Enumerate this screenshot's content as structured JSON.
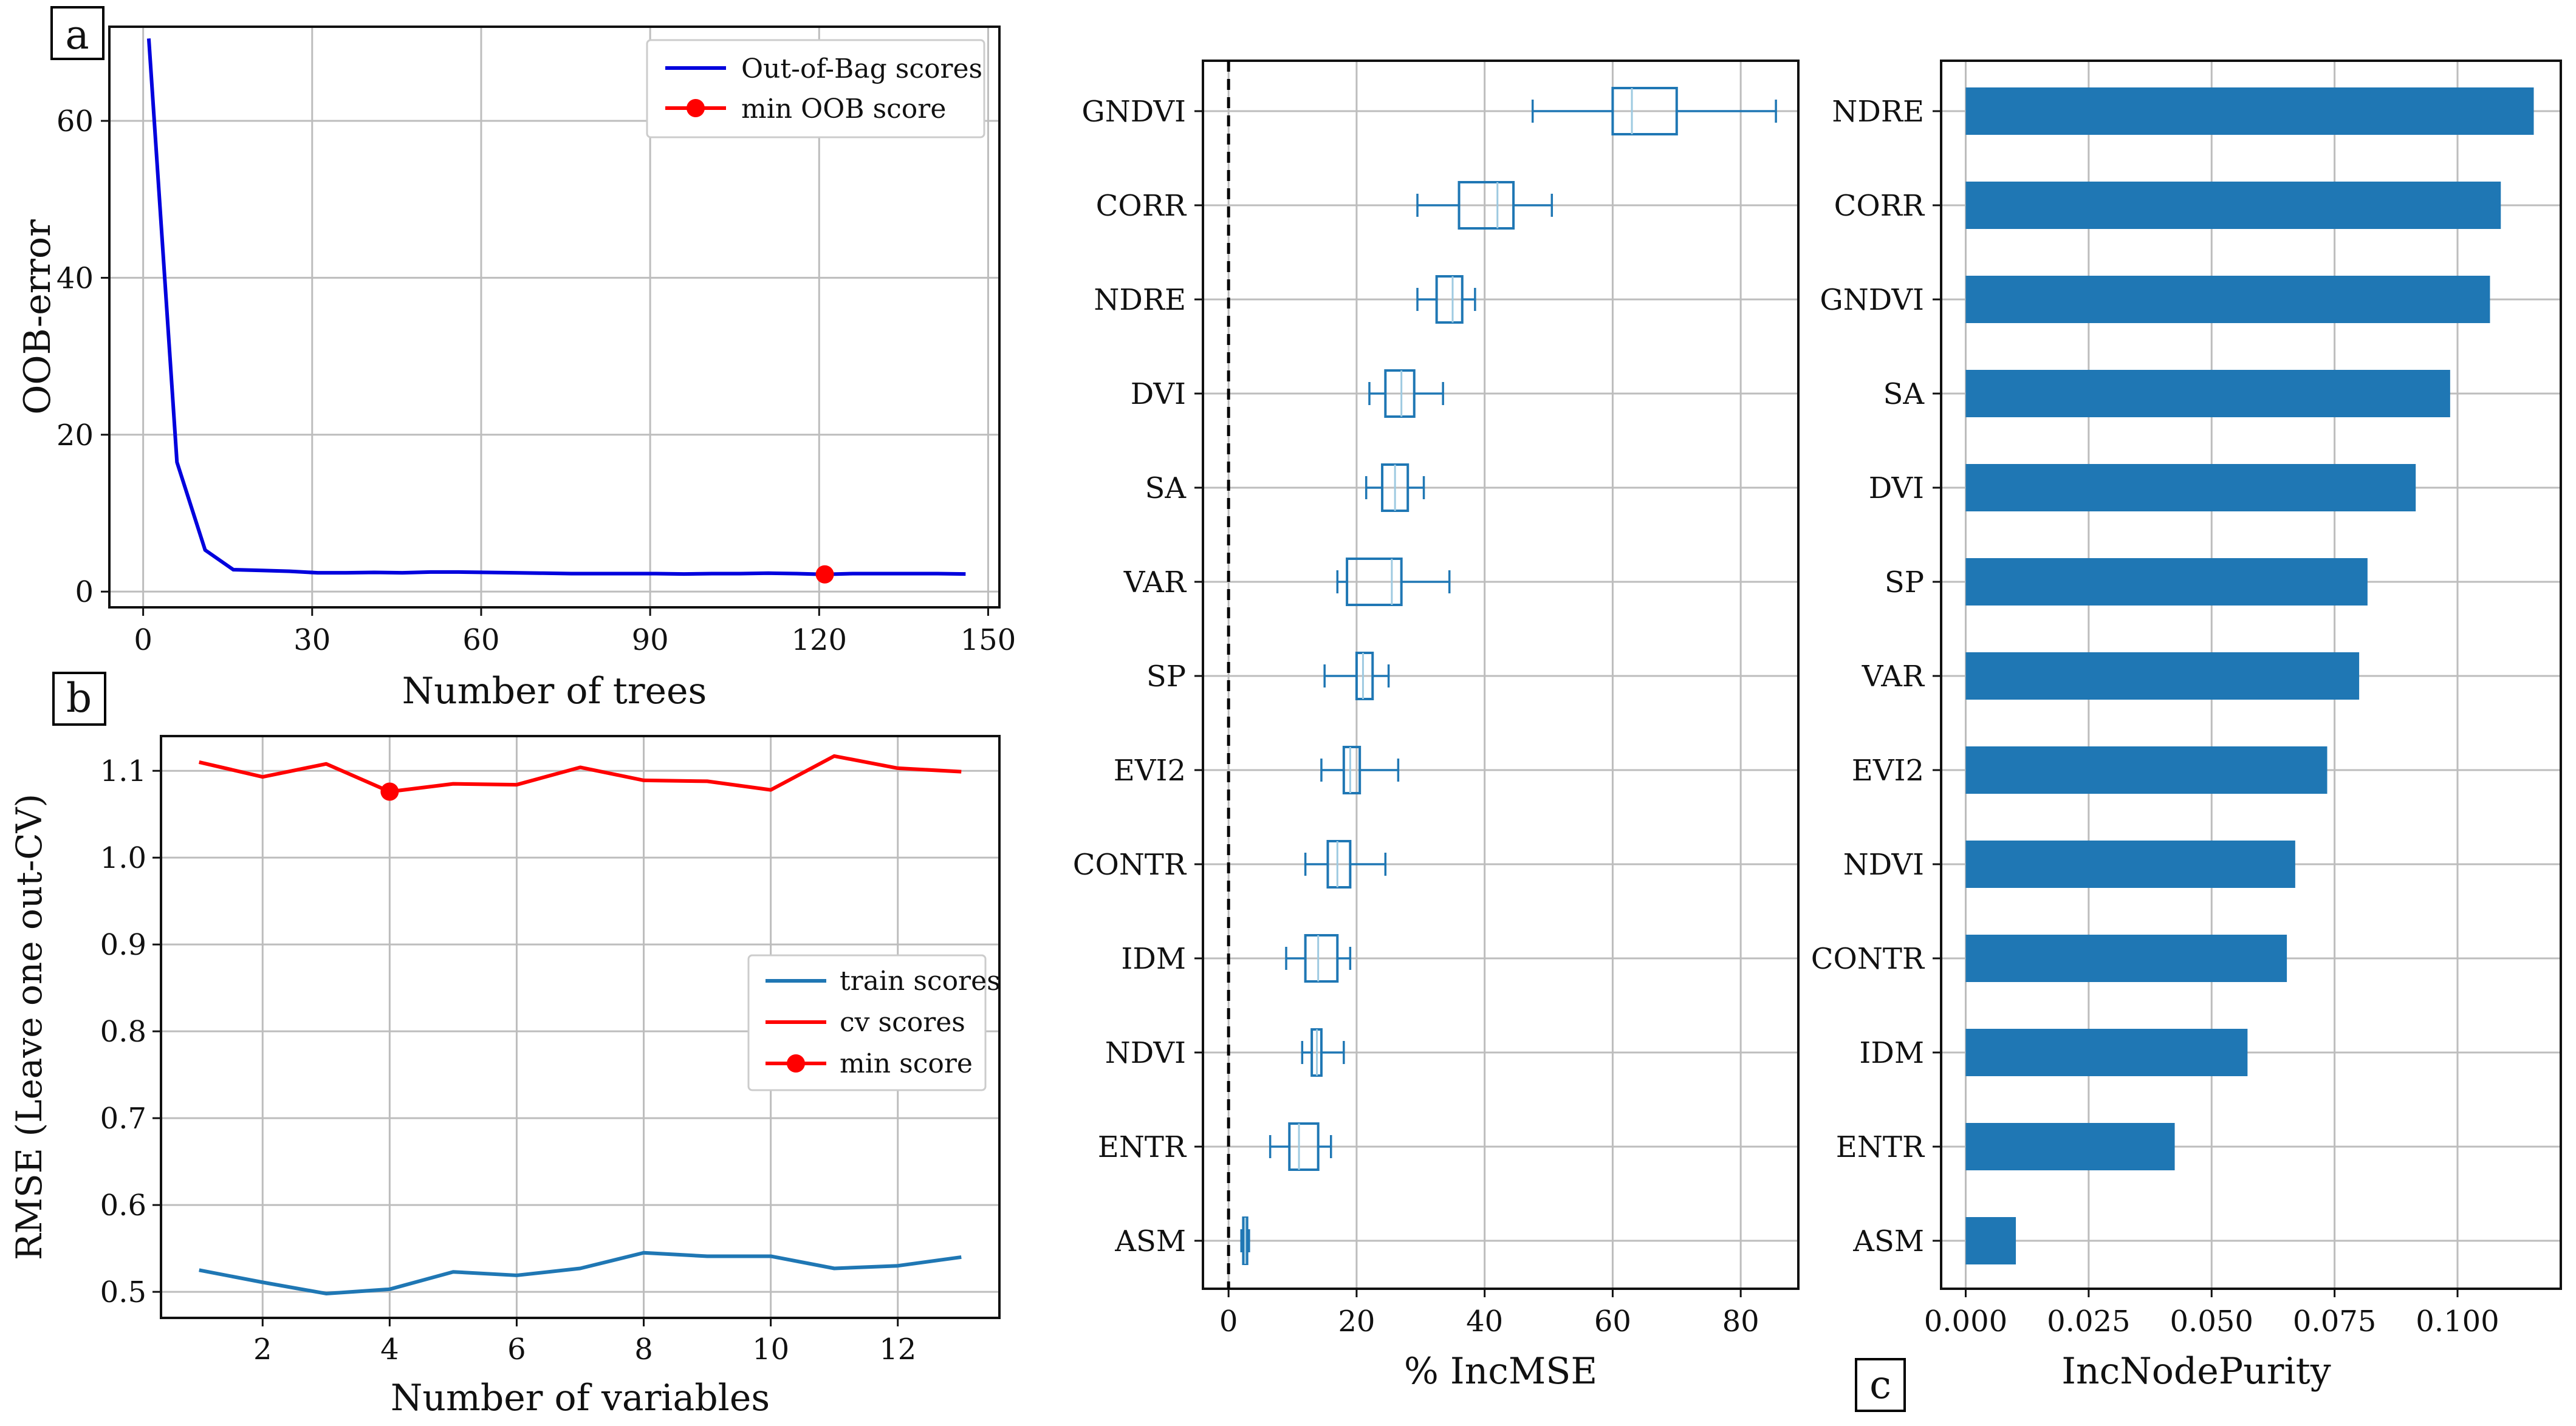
{
  "panels": {
    "a": {
      "tag": "a"
    },
    "b": {
      "tag": "b"
    },
    "c": {
      "tag": "c"
    }
  },
  "chart_data": [
    {
      "id": "a",
      "type": "line",
      "title": "",
      "xlabel": "Number of trees",
      "ylabel": "OOB-error",
      "xlim": [
        -6,
        152
      ],
      "ylim": [
        -2,
        72
      ],
      "xticks": [
        0,
        30,
        60,
        90,
        120,
        150
      ],
      "yticks": [
        0,
        20,
        40,
        60
      ],
      "grid": true,
      "legend_position": "top-right",
      "series": [
        {
          "name": "Out-of-Bag scores",
          "color": "#0000dd",
          "x": [
            1,
            6,
            11,
            16,
            21,
            26,
            31,
            36,
            41,
            46,
            51,
            56,
            61,
            66,
            71,
            76,
            81,
            86,
            91,
            96,
            101,
            106,
            111,
            116,
            121,
            126,
            131,
            136,
            141,
            146
          ],
          "y": [
            70.5,
            16.5,
            5.3,
            2.8,
            2.7,
            2.6,
            2.4,
            2.4,
            2.45,
            2.4,
            2.5,
            2.5,
            2.45,
            2.4,
            2.35,
            2.3,
            2.3,
            2.3,
            2.3,
            2.25,
            2.3,
            2.3,
            2.35,
            2.3,
            2.2,
            2.3,
            2.3,
            2.3,
            2.3,
            2.25
          ]
        }
      ],
      "markers": [
        {
          "name": "min OOB score",
          "color": "#ff0000",
          "x": 121,
          "y": 2.2
        }
      ]
    },
    {
      "id": "b",
      "type": "line",
      "title": "",
      "xlabel": "Number of variables",
      "ylabel": "RMSE (Leave one out-CV)",
      "xlim": [
        0.4,
        13.6
      ],
      "ylim": [
        0.47,
        1.14
      ],
      "xticks": [
        2,
        4,
        6,
        8,
        10,
        12
      ],
      "yticks": [
        0.5,
        0.6,
        0.7,
        0.8,
        0.9,
        1.0,
        1.1
      ],
      "ytick_labels": [
        "0.5",
        "0.6",
        "0.7",
        "0.8",
        "0.9",
        "1.0",
        "1.1"
      ],
      "grid": true,
      "legend_position": "center-right",
      "categories": [
        1,
        2,
        3,
        4,
        5,
        6,
        7,
        8,
        9,
        10,
        11,
        12,
        13
      ],
      "series": [
        {
          "name": "train scores",
          "color": "#1f77b4",
          "values": [
            0.525,
            0.511,
            0.498,
            0.503,
            0.523,
            0.519,
            0.527,
            0.545,
            0.541,
            0.541,
            0.527,
            0.53,
            0.54
          ]
        },
        {
          "name": "cv scores",
          "color": "#ff0000",
          "values": [
            1.11,
            1.093,
            1.108,
            1.076,
            1.085,
            1.084,
            1.104,
            1.089,
            1.088,
            1.078,
            1.117,
            1.103,
            1.099
          ]
        }
      ],
      "markers": [
        {
          "name": "min score",
          "color": "#ff0000",
          "x": 4,
          "y": 1.076
        }
      ]
    },
    {
      "id": "boxplot",
      "type": "box",
      "title": "",
      "xlabel": "% IncMSE",
      "ylabel": "",
      "xlim": [
        -4,
        89
      ],
      "xticks": [
        0,
        20,
        40,
        60,
        80
      ],
      "grid": true,
      "reference_line": 0,
      "color": "#1f77b4",
      "categories": [
        "GNDVI",
        "CORR",
        "NDRE",
        "DVI",
        "SA",
        "VAR",
        "SP",
        "EVI2",
        "CONTR",
        "IDM",
        "NDVI",
        "ENTR",
        "ASM"
      ],
      "boxes": [
        {
          "label": "GNDVI",
          "whislo": 47.5,
          "q1": 60,
          "median": 63,
          "q3": 70,
          "whishi": 85.5
        },
        {
          "label": "CORR",
          "whislo": 29.5,
          "q1": 36,
          "median": 42,
          "q3": 44.5,
          "whishi": 50.5
        },
        {
          "label": "NDRE",
          "whislo": 29.5,
          "q1": 32.5,
          "median": 35,
          "q3": 36.5,
          "whishi": 38.5
        },
        {
          "label": "DVI",
          "whislo": 22,
          "q1": 24.5,
          "median": 27,
          "q3": 29,
          "whishi": 33.5
        },
        {
          "label": "SA",
          "whislo": 21.5,
          "q1": 24,
          "median": 26,
          "q3": 28,
          "whishi": 30.5
        },
        {
          "label": "VAR",
          "whislo": 17,
          "q1": 18.5,
          "median": 25.5,
          "q3": 27,
          "whishi": 34.5
        },
        {
          "label": "SP",
          "whislo": 15,
          "q1": 20,
          "median": 21,
          "q3": 22.5,
          "whishi": 25
        },
        {
          "label": "EVI2",
          "whislo": 14.5,
          "q1": 18,
          "median": 19,
          "q3": 20.5,
          "whishi": 26.5
        },
        {
          "label": "CONTR",
          "whislo": 12,
          "q1": 15.5,
          "median": 17,
          "q3": 19,
          "whishi": 24.5
        },
        {
          "label": "IDM",
          "whislo": 9,
          "q1": 12,
          "median": 14,
          "q3": 17,
          "whishi": 19
        },
        {
          "label": "NDVI",
          "whislo": 11.5,
          "q1": 13,
          "median": 13.8,
          "q3": 14.5,
          "whishi": 18
        },
        {
          "label": "ENTR",
          "whislo": 6.5,
          "q1": 9.5,
          "median": 11,
          "q3": 14,
          "whishi": 16
        },
        {
          "label": "ASM",
          "whislo": 2,
          "q1": 2.3,
          "median": 2.6,
          "q3": 2.9,
          "whishi": 3.2
        }
      ]
    },
    {
      "id": "c",
      "type": "bar",
      "orientation": "horizontal",
      "title": "",
      "xlabel": "IncNodePurity",
      "ylabel": "",
      "xlim": [
        -0.005,
        0.121
      ],
      "xticks": [
        0.0,
        0.025,
        0.05,
        0.075,
        0.1
      ],
      "xtick_labels": [
        "0.000",
        "0.025",
        "0.050",
        "0.075",
        "0.100"
      ],
      "grid": true,
      "color": "#1f77b4",
      "categories": [
        "NDRE",
        "CORR",
        "GNDVI",
        "SA",
        "DVI",
        "SP",
        "VAR",
        "EVI2",
        "NDVI",
        "CONTR",
        "IDM",
        "ENTR",
        "ASM"
      ],
      "values": [
        0.1155,
        0.1088,
        0.1066,
        0.0985,
        0.0915,
        0.0817,
        0.08,
        0.0735,
        0.067,
        0.0653,
        0.0573,
        0.0425,
        0.0102
      ]
    }
  ]
}
